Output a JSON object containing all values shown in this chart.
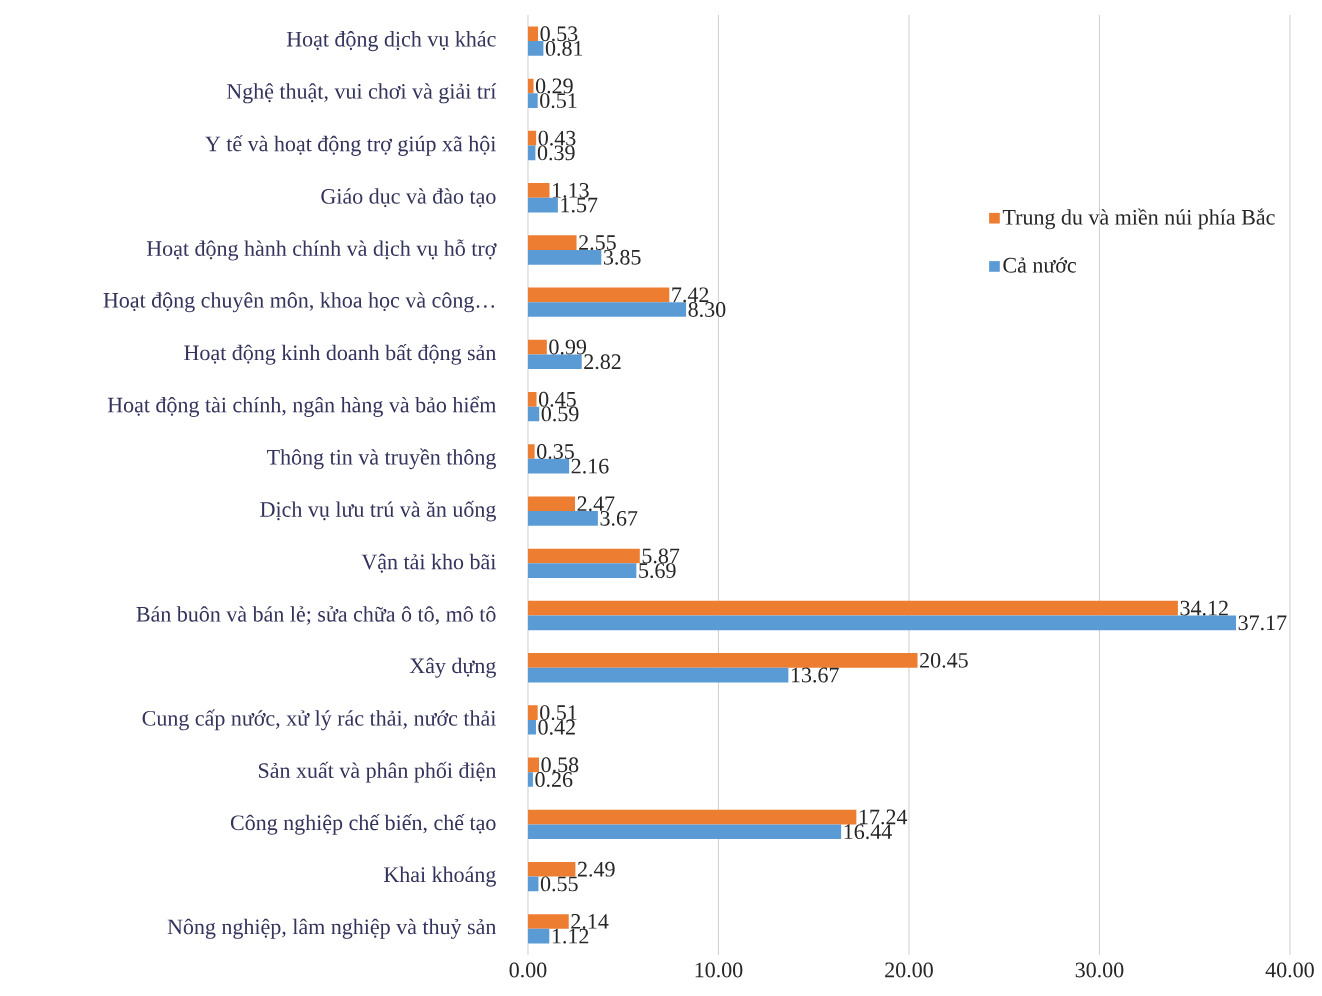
{
  "chart_data": {
    "type": "bar",
    "orientation": "horizontal",
    "grid": "x",
    "legend": "right",
    "categories": [
      "Hoạt động dịch vụ khác",
      "Nghệ thuật, vui chơi và giải trí",
      "Y tế và hoạt động trợ giúp xã hội",
      "Giáo dục và đào tạo",
      "Hoạt động hành chính và dịch vụ hỗ trợ",
      "Hoạt động chuyên môn, khoa học và công…",
      "Hoạt động kinh doanh bất động sản",
      "Hoạt động tài chính, ngân hàng và bảo hiểm",
      "Thông tin và truyền thông",
      "Dịch vụ lưu trú và ăn uống",
      "Vận tải kho bãi",
      "Bán buôn và bán lẻ; sửa chữa ô tô, mô tô",
      "Xây dựng",
      "Cung cấp nước, xử lý rác thải, nước thải",
      "Sản xuất và phân phối điện",
      "Công nghiệp chế biến, chế tạo",
      "Khai khoáng",
      "Nông nghiệp, lâm nghiệp và thuỷ sản"
    ],
    "series": [
      {
        "name": "Trung du và miền núi phía Bắc",
        "color": "#ed7d31",
        "values": [
          0.53,
          0.29,
          0.43,
          1.13,
          2.55,
          7.42,
          0.99,
          0.45,
          0.35,
          2.47,
          5.87,
          34.12,
          20.45,
          0.51,
          0.58,
          17.24,
          2.49,
          2.14
        ],
        "value_labels": [
          "0.53",
          "0.29",
          "0.43",
          "1.13",
          "2.55",
          "7.42",
          "0.99",
          "0.45",
          "0.35",
          "2.47",
          "5.87",
          "34.12",
          "20.45",
          "0.51",
          "0.58",
          "17.24",
          "2.49",
          "2.14"
        ]
      },
      {
        "name": "Cả nước",
        "color": "#5b9bd5",
        "values": [
          0.81,
          0.51,
          0.39,
          1.57,
          3.85,
          8.3,
          2.82,
          0.59,
          2.16,
          3.67,
          5.69,
          37.17,
          13.67,
          0.42,
          0.26,
          16.44,
          0.55,
          1.12
        ],
        "value_labels": [
          "0.81",
          "0.51",
          "0.39",
          "1.57",
          "3.85",
          "8.30",
          "2.82",
          "0.59",
          "2.16",
          "3.67",
          "5.69",
          "37.17",
          "13.67",
          "0.42",
          "0.26",
          "16.44",
          "0.55",
          "1.12"
        ]
      }
    ],
    "xlim": [
      0,
      40
    ],
    "xticks": [
      {
        "value": 0,
        "label": "0.00"
      },
      {
        "value": 10,
        "label": "10.00"
      },
      {
        "value": 20,
        "label": "20.00"
      },
      {
        "value": 30,
        "label": "30.00"
      },
      {
        "value": 40,
        "label": "40.00"
      }
    ]
  }
}
